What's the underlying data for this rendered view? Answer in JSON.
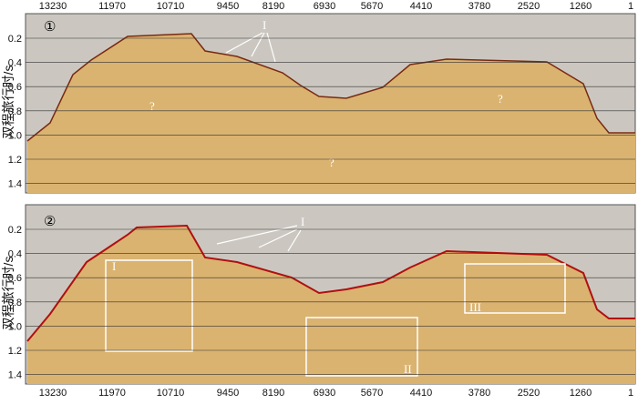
{
  "top_axis": [
    13230,
    11970,
    10710,
    9450,
    8190,
    6930,
    5670,
    4410,
    3780,
    2520,
    1260,
    1
  ],
  "bottom_axis": [
    13230,
    11970,
    10710,
    9450,
    8190,
    6930,
    5670,
    4410,
    3780,
    2520,
    1260,
    1
  ],
  "panels": [
    {
      "label": "①",
      "y_axis_title": "双程旅行时/s",
      "y_ticks": [
        "0.2",
        "0.4",
        "0.6",
        "0.8",
        "1.0",
        "1.2",
        "1.4"
      ],
      "arrow_label": "I",
      "question_marks": [
        "?",
        "?",
        "?"
      ]
    },
    {
      "label": "②",
      "y_axis_title": "双程旅行时/s",
      "y_ticks": [
        "0.2",
        "0.4",
        "0.6",
        "0.8",
        "1.0",
        "1.2",
        "1.4"
      ],
      "arrow_label": "I",
      "boxes": [
        "I",
        "II",
        "III"
      ]
    }
  ]
}
